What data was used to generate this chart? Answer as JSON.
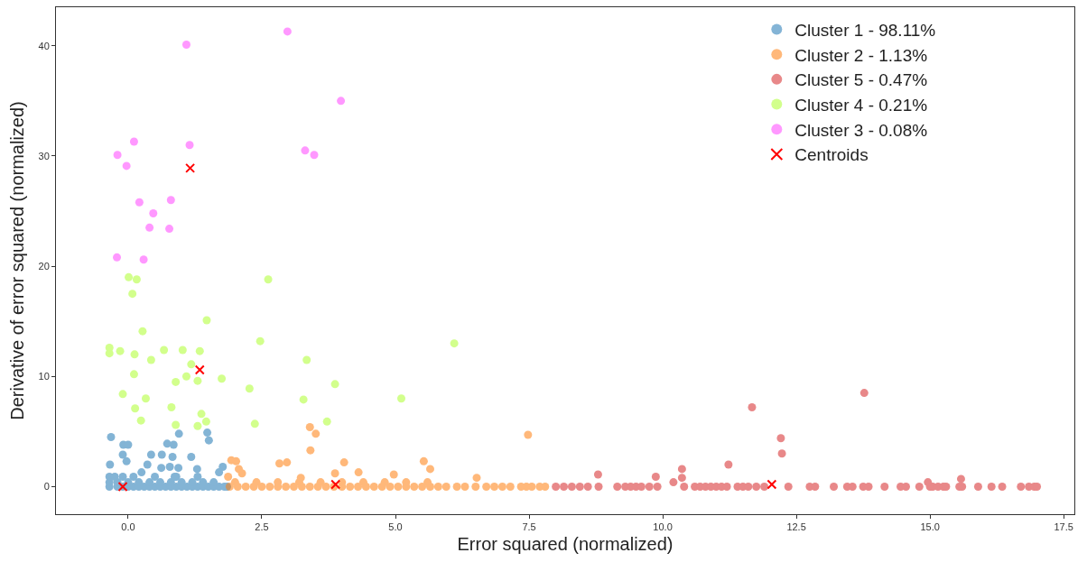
{
  "chart_data": {
    "type": "scatter",
    "xlabel": "Error squared (normalized)",
    "ylabel": "Derivative of error squared (normalized)",
    "xlim": [
      -1.35,
      17.7
    ],
    "ylim": [
      -2.5,
      43.5
    ],
    "xticks": [
      {
        "value": 0,
        "label": "0.0"
      },
      {
        "value": 2.5,
        "label": "2.5"
      },
      {
        "value": 5,
        "label": "5.0"
      },
      {
        "value": 7.5,
        "label": "7.5"
      },
      {
        "value": 10,
        "label": "10.0"
      },
      {
        "value": 12.5,
        "label": "12.5"
      },
      {
        "value": 15,
        "label": "15.0"
      },
      {
        "value": 17.5,
        "label": "17.5"
      }
    ],
    "yticks": [
      0,
      10,
      20,
      30,
      40
    ],
    "grid": false,
    "legend": "top right",
    "marker": "circle",
    "series": [
      {
        "name": "Cluster 1 - 98.11%",
        "color": "#1f77b4",
        "x": [
          -0.35,
          -0.2,
          -0.1,
          0.0,
          0.1,
          0.2,
          0.3,
          0.4,
          0.5,
          0.6,
          0.7,
          0.8,
          0.9,
          1.0,
          1.1,
          1.2,
          1.3,
          1.4,
          1.5,
          1.6,
          1.7,
          1.8,
          1.85,
          -0.35,
          -0.2,
          0.0,
          0.2,
          0.4,
          0.6,
          0.8,
          1.0,
          1.2,
          1.4,
          1.6,
          -0.35,
          -0.25,
          -0.1,
          0.1,
          0.5,
          0.9,
          1.3,
          -0.32,
          -0.09,
          0.0,
          0.73,
          0.85,
          0.95,
          1.48,
          1.51,
          -0.1,
          -0.03,
          0.43,
          0.63,
          0.83,
          1.18,
          0.36,
          0.62,
          0.78,
          0.94,
          1.29,
          1.77,
          1.7,
          0.87,
          0.25,
          -0.34
        ],
        "values": [
          0,
          0,
          0,
          0,
          0,
          0,
          0,
          0,
          0,
          0,
          0,
          0,
          0,
          0,
          0,
          0,
          0,
          0,
          0,
          0,
          0,
          0,
          0,
          0.4,
          0.4,
          0.4,
          0.4,
          0.4,
          0.4,
          0.4,
          0.4,
          0.4,
          0.4,
          0.4,
          0.9,
          0.9,
          0.9,
          0.9,
          0.9,
          0.9,
          0.9,
          4.5,
          3.8,
          3.8,
          3.9,
          3.8,
          4.8,
          4.9,
          4.2,
          2.9,
          2.3,
          2.9,
          2.9,
          2.7,
          2.7,
          2.0,
          1.7,
          1.8,
          1.7,
          1.6,
          1.8,
          1.3,
          0.9,
          1.3,
          2.0
        ]
      },
      {
        "name": "Cluster 2 - 1.13%",
        "color": "#ff7f0e",
        "x": [
          1.9,
          2.05,
          2.2,
          2.35,
          2.5,
          2.65,
          2.8,
          2.95,
          3.1,
          3.25,
          3.4,
          3.55,
          3.7,
          3.85,
          4.0,
          4.15,
          4.3,
          4.45,
          4.6,
          4.75,
          4.9,
          5.05,
          5.2,
          5.35,
          5.5,
          5.65,
          5.8,
          5.95,
          6.15,
          6.3,
          6.5,
          6.7,
          6.85,
          7.0,
          7.15,
          7.35,
          7.45,
          7.55,
          7.7,
          7.8,
          2.0,
          2.4,
          2.8,
          3.2,
          3.6,
          4.0,
          4.4,
          4.8,
          5.2,
          5.6,
          1.93,
          2.02,
          2.07,
          2.13,
          1.87,
          2.83,
          2.97,
          3.4,
          3.51,
          3.41,
          4.04,
          4.31,
          3.87,
          3.23,
          4.97,
          5.53,
          5.65,
          6.52,
          7.48
        ],
        "values": [
          0,
          0,
          0,
          0,
          0,
          0,
          0,
          0,
          0,
          0,
          0,
          0,
          0,
          0,
          0,
          0,
          0,
          0,
          0,
          0,
          0,
          0,
          0,
          0,
          0,
          0,
          0,
          0,
          0,
          0,
          0,
          0,
          0,
          0,
          0,
          0,
          0,
          0,
          0,
          0,
          0.4,
          0.4,
          0.4,
          0.4,
          0.4,
          0.4,
          0.4,
          0.4,
          0.4,
          0.4,
          2.4,
          2.3,
          1.6,
          1.2,
          0.9,
          2.1,
          2.2,
          5.4,
          4.8,
          3.3,
          2.2,
          1.3,
          1.2,
          0.8,
          1.1,
          2.3,
          1.6,
          0.8,
          4.7
        ]
      },
      {
        "name": "Cluster 5 - 0.47%",
        "color": "#d62728",
        "x": [
          8.0,
          8.15,
          8.3,
          8.45,
          8.6,
          8.8,
          9.15,
          9.3,
          9.4,
          9.5,
          9.6,
          9.75,
          9.9,
          10.4,
          10.6,
          10.7,
          10.8,
          10.9,
          11.0,
          11.1,
          11.2,
          11.4,
          11.5,
          11.6,
          11.75,
          11.9,
          12.35,
          12.75,
          12.85,
          13.2,
          13.45,
          13.55,
          13.75,
          13.85,
          14.15,
          14.45,
          14.55,
          14.8,
          15.0,
          15.05,
          15.15,
          15.25,
          15.3,
          15.55,
          15.6,
          15.9,
          16.15,
          16.35,
          16.7,
          16.85,
          16.95,
          17.0,
          11.67,
          13.77,
          12.21,
          12.23,
          11.23,
          10.36,
          10.36,
          9.87,
          8.79,
          10.2,
          15.58,
          14.96
        ],
        "values": [
          0,
          0,
          0,
          0,
          0,
          0,
          0,
          0,
          0,
          0,
          0,
          0,
          0,
          0,
          0,
          0,
          0,
          0,
          0,
          0,
          0,
          0,
          0,
          0,
          0,
          0,
          0,
          0,
          0,
          0,
          0,
          0,
          0,
          0,
          0,
          0,
          0,
          0,
          0,
          0,
          0,
          0,
          0,
          0,
          0,
          0,
          0,
          0,
          0,
          0,
          0,
          0,
          7.2,
          8.5,
          4.4,
          3.0,
          2.0,
          1.6,
          0.8,
          0.9,
          1.1,
          0.4,
          0.7,
          0.4
        ]
      },
      {
        "name": "Cluster 4 - 0.21%",
        "color": "#adff2f",
        "x": [
          0.01,
          0.16,
          0.08,
          2.62,
          1.47,
          0.27,
          2.47,
          6.1,
          -0.35,
          -0.35,
          -0.15,
          0.12,
          0.67,
          1.02,
          1.34,
          0.43,
          3.34,
          1.18,
          0.11,
          1.09,
          1.3,
          0.89,
          1.75,
          3.87,
          2.27,
          -0.1,
          0.33,
          3.28,
          5.11,
          0.81,
          0.13,
          1.37,
          0.24,
          1.46,
          3.72,
          0.89,
          1.3,
          2.37
        ],
        "values": [
          19.0,
          18.8,
          17.5,
          18.8,
          15.1,
          14.1,
          13.2,
          13.0,
          12.6,
          12.1,
          12.3,
          12.0,
          12.4,
          12.4,
          12.3,
          11.5,
          11.5,
          11.1,
          10.2,
          10.0,
          9.6,
          9.5,
          9.8,
          9.3,
          8.9,
          8.4,
          8.0,
          7.9,
          8.0,
          7.2,
          7.1,
          6.6,
          6.0,
          5.9,
          5.9,
          5.6,
          5.5,
          5.7
        ]
      },
      {
        "name": "Cluster 3 - 0.08%",
        "color": "#ff44ff",
        "x": [
          1.09,
          2.98,
          3.98,
          0.11,
          1.15,
          -0.2,
          -0.03,
          3.31,
          3.48,
          0.21,
          0.8,
          0.47,
          0.4,
          0.77,
          -0.21,
          0.29
        ],
        "values": [
          40.1,
          41.3,
          35.0,
          31.3,
          31.0,
          30.1,
          29.1,
          30.5,
          30.1,
          25.8,
          26.0,
          24.8,
          23.5,
          23.4,
          20.8,
          20.6
        ]
      },
      {
        "name": "Centroids",
        "color": "#ff0000",
        "marker": "cross",
        "x": [
          -0.1,
          3.88,
          12.04,
          1.34,
          1.16
        ],
        "values": [
          0.0,
          0.2,
          0.2,
          10.6,
          28.9
        ]
      }
    ]
  }
}
